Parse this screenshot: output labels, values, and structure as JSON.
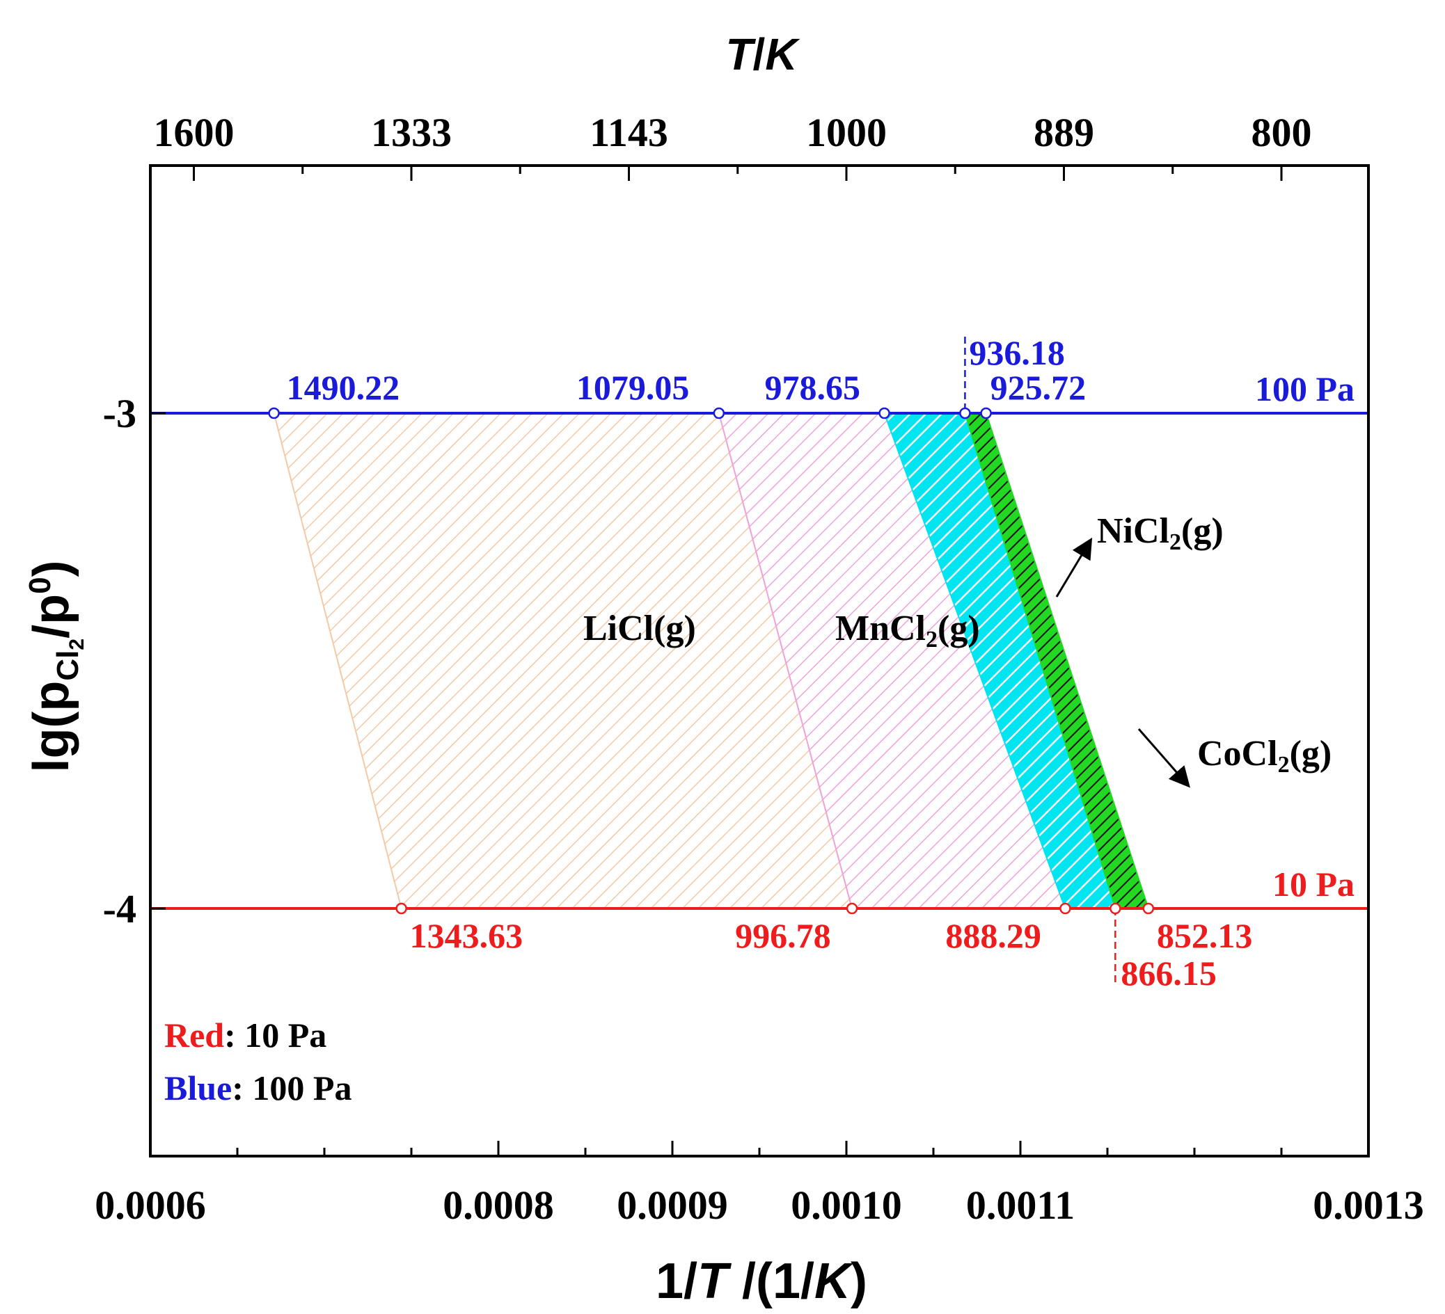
{
  "chart_data": {
    "type": "area",
    "title": "",
    "xlabel": {
      "pre": "1/",
      "var": "T",
      "mid": " /(1/",
      "unit": "K",
      "post": ")"
    },
    "ylabel": {
      "pre": "lg(p",
      "sub": "Cl",
      "subsub": "2",
      "mid": "/p",
      "sup": "0",
      "post": ")"
    },
    "top_xlabel": {
      "var": "T",
      "slash": "/",
      "unit": "K"
    },
    "xlim": [
      0.0006,
      0.0013
    ],
    "ylim": [
      -4.5,
      -2.5
    ],
    "x_ticks": [
      {
        "v": 0.0006,
        "label": "0.0006"
      },
      {
        "v": 0.0008,
        "label": "0.0008"
      },
      {
        "v": 0.0009,
        "label": "0.0009"
      },
      {
        "v": 0.001,
        "label": "0.0010"
      },
      {
        "v": 0.0011,
        "label": "0.0011"
      },
      {
        "v": 0.0013,
        "label": "0.0013"
      }
    ],
    "x_minor_ticks": [
      0.00065,
      0.0007,
      0.00075,
      0.00085,
      0.00095,
      0.00105,
      0.00115,
      0.0012,
      0.00125
    ],
    "top_ticks": [
      {
        "v": 0.000625,
        "label": "1600"
      },
      {
        "v": 0.00075,
        "label": "1333"
      },
      {
        "v": 0.000875,
        "label": "1143"
      },
      {
        "v": 0.001,
        "label": "1000"
      },
      {
        "v": 0.001125,
        "label": "889"
      },
      {
        "v": 0.00125,
        "label": "800"
      }
    ],
    "y_ticks": [
      {
        "v": -3,
        "label": "-3"
      },
      {
        "v": -4,
        "label": "-4"
      }
    ],
    "pressure_lines": [
      {
        "name": "100 Pa",
        "y": -3,
        "color": "#1a1adb",
        "label": "100 Pa"
      },
      {
        "name": "10 Pa",
        "y": -4,
        "color": "#ee1c1c",
        "label": "10 Pa"
      }
    ],
    "regions": [
      {
        "name": "LiCl(g)",
        "color": "#f5c9a5",
        "top": [
          1490.22,
          1079.05
        ],
        "bottom": [
          1343.63,
          996.78
        ]
      },
      {
        "name": "MnCl2(g)",
        "color": "#f0a3d8",
        "top": [
          1079.05,
          978.65
        ],
        "bottom": [
          996.78,
          888.29
        ]
      },
      {
        "name": "cyan",
        "color": "#00e5f0",
        "top": [
          978.65,
          936.18
        ],
        "bottom": [
          888.29,
          866.15
        ]
      },
      {
        "name": "green",
        "color": "#22d822",
        "top": [
          936.18,
          925.72
        ],
        "bottom": [
          866.15,
          852.13
        ]
      }
    ],
    "points_100Pa": [
      {
        "T": 1490.22,
        "label": "1490.22"
      },
      {
        "T": 1079.05,
        "label": "1079.05"
      },
      {
        "T": 978.65,
        "label": "978.65"
      },
      {
        "T": 936.18,
        "label": "936.18"
      },
      {
        "T": 925.72,
        "label": "925.72"
      }
    ],
    "points_10Pa": [
      {
        "T": 1343.63,
        "label": "1343.63"
      },
      {
        "T": 996.78,
        "label": "996.78"
      },
      {
        "T": 888.29,
        "label": "888.29"
      },
      {
        "T": 866.15,
        "label": "866.15"
      },
      {
        "T": 852.13,
        "label": "852.13"
      }
    ],
    "region_labels": {
      "licl": {
        "text": "LiCl(g)"
      },
      "mncl2": {
        "pre": "MnCl",
        "sub": "2",
        "post": "(g)"
      },
      "nicl2": {
        "pre": "NiCl",
        "sub": "2",
        "post": "(g)"
      },
      "cocl2": {
        "pre": "CoCl",
        "sub": "2",
        "post": "(g)"
      }
    },
    "legend": {
      "position": "bottom-left",
      "red_word": "Red",
      "red_rest": ": 10 Pa",
      "blue_word": "Blue",
      "blue_rest": ": 100 Pa"
    }
  }
}
